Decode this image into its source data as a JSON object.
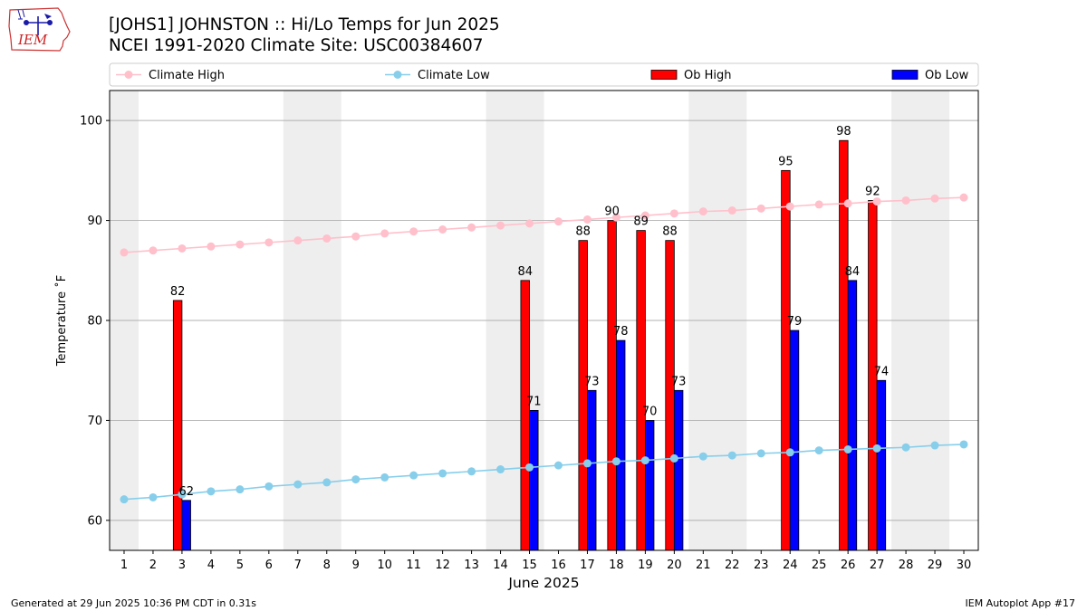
{
  "logo": {
    "text": "IEM"
  },
  "title": {
    "line1": "[JOHS1] JOHNSTON :: Hi/Lo Temps for Jun 2025",
    "line2": "NCEI 1991-2020 Climate Site: USC00384607"
  },
  "footer": {
    "left": "Generated at 29 Jun 2025 10:36 PM CDT in 0.31s",
    "right": "IEM Autoplot App #17"
  },
  "chart_data": {
    "type": "bar",
    "title": "[JOHS1] JOHNSTON :: Hi/Lo Temps for Jun 2025",
    "xlabel": "June 2025",
    "ylabel": "Temperature ˚F",
    "xlim": [
      0.5,
      30.5
    ],
    "ylim": [
      57,
      103
    ],
    "yticks": [
      60,
      70,
      80,
      90,
      100
    ],
    "x": [
      1,
      2,
      3,
      4,
      5,
      6,
      7,
      8,
      9,
      10,
      11,
      12,
      13,
      14,
      15,
      16,
      17,
      18,
      19,
      20,
      21,
      22,
      23,
      24,
      25,
      26,
      27,
      28,
      29,
      30
    ],
    "xtick_labels": [
      "1",
      "2",
      "3",
      "4",
      "5",
      "6",
      "7",
      "8",
      "9",
      "10",
      "11",
      "12",
      "13",
      "14",
      "15",
      "16",
      "17",
      "18",
      "19",
      "20",
      "21",
      "22",
      "23",
      "24",
      "25",
      "26",
      "27",
      "28",
      "29",
      "30"
    ],
    "weekend_shading": [
      [
        0.5,
        1.5
      ],
      [
        6.5,
        8.5
      ],
      [
        13.5,
        15.5
      ],
      [
        20.5,
        22.5
      ],
      [
        27.5,
        29.5
      ]
    ],
    "grid": "horizontal",
    "legend_placement": "top, single row",
    "series": [
      {
        "name": "Climate High",
        "kind": "line",
        "color": "#ffc0cb",
        "values": [
          86.8,
          87.0,
          87.2,
          87.4,
          87.6,
          87.8,
          88.0,
          88.2,
          88.4,
          88.7,
          88.9,
          89.1,
          89.3,
          89.5,
          89.7,
          89.9,
          90.1,
          90.3,
          90.5,
          90.7,
          90.9,
          91.0,
          91.2,
          91.4,
          91.6,
          91.7,
          91.9,
          92.0,
          92.2,
          92.3
        ]
      },
      {
        "name": "Climate Low",
        "kind": "line",
        "color": "#87ceeb",
        "values": [
          62.1,
          62.3,
          62.6,
          62.9,
          63.1,
          63.4,
          63.6,
          63.8,
          64.1,
          64.3,
          64.5,
          64.7,
          64.9,
          65.1,
          65.3,
          65.5,
          65.7,
          65.9,
          66.0,
          66.2,
          66.4,
          66.5,
          66.7,
          66.8,
          67.0,
          67.1,
          67.2,
          67.3,
          67.5,
          67.6
        ]
      },
      {
        "name": "Ob High",
        "kind": "bar",
        "color": "#ff0000",
        "values": [
          null,
          null,
          82,
          null,
          null,
          null,
          null,
          null,
          null,
          null,
          null,
          null,
          null,
          null,
          84,
          null,
          88,
          90,
          89,
          88,
          null,
          null,
          null,
          95,
          null,
          98,
          92,
          null,
          null,
          null
        ]
      },
      {
        "name": "Ob Low",
        "kind": "bar",
        "color": "#0000ff",
        "values": [
          null,
          null,
          62,
          null,
          null,
          null,
          null,
          null,
          null,
          null,
          null,
          null,
          null,
          null,
          71,
          null,
          73,
          78,
          70,
          73,
          null,
          null,
          null,
          79,
          null,
          84,
          74,
          null,
          null,
          null
        ]
      }
    ]
  }
}
